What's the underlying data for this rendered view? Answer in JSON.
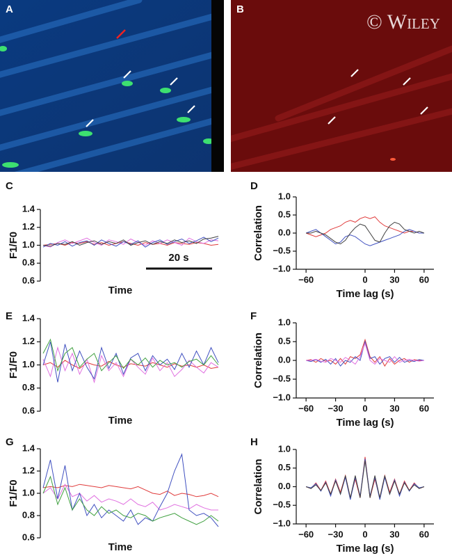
{
  "images": [
    {
      "panel": "A"
    },
    {
      "panel": "B",
      "watermark": "© Wiley"
    }
  ],
  "chart_data": [
    {
      "type": "line",
      "panel": "C",
      "ylabel": "F1/F0",
      "xlabel": "Time",
      "annotation": "20 s",
      "ylim": [
        0.6,
        1.4
      ],
      "yticks": [
        0.6,
        0.8,
        {
          "value": 1.0,
          "label": "1.0"
        },
        1.2,
        1.4
      ],
      "series": [
        {
          "name": "red",
          "color": "#e03a3a",
          "values": [
            1.0,
            1.01,
            1.02,
            1.0,
            1.03,
            1.02,
            1.04,
            1.01,
            1.03,
            1.0,
            1.02,
            1.04,
            1.02,
            1.0,
            1.03,
            1.01,
            1.02,
            1.0,
            1.03,
            1.02,
            1.01,
            1.03,
            1.02,
            1.0,
            1.01
          ]
        },
        {
          "name": "magenta",
          "color": "#e070e0",
          "values": [
            1.0,
            0.98,
            1.03,
            1.06,
            1.02,
            1.05,
            1.08,
            1.03,
            1.0,
            1.06,
            1.04,
            1.01,
            1.07,
            1.03,
            1.0,
            1.05,
            1.02,
            1.06,
            1.03,
            1.0,
            1.08,
            1.04,
            1.02,
            1.06,
            1.05
          ]
        },
        {
          "name": "blue",
          "color": "#4050c0",
          "values": [
            0.98,
            1.02,
            1.0,
            1.04,
            0.99,
            1.03,
            1.05,
            1.0,
            1.06,
            1.02,
            0.99,
            1.04,
            1.01,
            1.05,
            0.98,
            1.03,
            1.06,
            1.01,
            1.04,
            1.07,
            1.02,
            1.05,
            1.09,
            1.04,
            1.08
          ]
        },
        {
          "name": "black",
          "color": "#404040",
          "values": [
            1.0,
            0.99,
            1.02,
            1.01,
            1.04,
            1.0,
            1.03,
            1.05,
            1.01,
            1.04,
            1.02,
            1.06,
            1.0,
            1.03,
            1.05,
            1.01,
            1.04,
            1.02,
            1.06,
            1.03,
            1.05,
            1.02,
            1.07,
            1.08,
            1.1
          ]
        }
      ]
    },
    {
      "type": "line",
      "panel": "D",
      "ylabel": "Correlation",
      "xlabel": "Time lag (s)",
      "xlim": [
        -70,
        70
      ],
      "xticks": [
        {
          "value": -60,
          "label": "−60"
        },
        0,
        30,
        60
      ],
      "ylim": [
        -1,
        1
      ],
      "yticks": [
        {
          "value": -1,
          "label": "−1.0"
        },
        {
          "value": -0.5,
          "label": "−0.5"
        },
        {
          "value": 0,
          "label": "0.0"
        },
        0.5,
        {
          "value": 1,
          "label": "1.0"
        }
      ],
      "x": [
        -60,
        -55,
        -50,
        -45,
        -40,
        -35,
        -30,
        -25,
        -20,
        -15,
        -10,
        -5,
        0,
        5,
        10,
        15,
        20,
        25,
        30,
        35,
        40,
        45,
        50,
        55,
        60
      ],
      "series": [
        {
          "name": "red",
          "color": "#e03a3a",
          "values": [
            0,
            -0.05,
            -0.1,
            -0.05,
            0.0,
            0.1,
            0.15,
            0.2,
            0.3,
            0.35,
            0.3,
            0.4,
            0.45,
            0.4,
            0.45,
            0.3,
            0.2,
            0.15,
            0.1,
            0.05,
            0.0,
            0.05,
            0.05,
            0.0,
            0
          ]
        },
        {
          "name": "blue",
          "color": "#4050c0",
          "values": [
            0,
            0.05,
            0.1,
            0.0,
            -0.1,
            -0.2,
            -0.3,
            -0.25,
            -0.1,
            -0.05,
            -0.1,
            -0.2,
            -0.3,
            -0.35,
            -0.3,
            -0.25,
            -0.2,
            -0.15,
            -0.1,
            -0.05,
            0.05,
            0.1,
            0.05,
            0.0,
            0
          ]
        },
        {
          "name": "black",
          "color": "#404040",
          "values": [
            0,
            0.0,
            0.05,
            0.0,
            -0.05,
            -0.15,
            -0.25,
            -0.3,
            -0.2,
            0.0,
            0.15,
            0.25,
            0.2,
            0.0,
            -0.2,
            -0.25,
            0.0,
            0.2,
            0.3,
            0.25,
            0.1,
            0.05,
            0.0,
            0.05,
            0
          ]
        }
      ]
    },
    {
      "type": "line",
      "panel": "E",
      "ylabel": "F1/F0",
      "xlabel": "Time",
      "ylim": [
        0.6,
        1.4
      ],
      "yticks": [
        0.6,
        0.8,
        {
          "value": 1.0,
          "label": "1.0"
        },
        1.2,
        1.4
      ],
      "series": [
        {
          "name": "red",
          "color": "#e03a3a",
          "values": [
            1.0,
            1.02,
            0.98,
            1.04,
            1.0,
            0.97,
            1.02,
            1.0,
            0.99,
            1.03,
            1.0,
            0.98,
            1.01,
            1.0,
            0.99,
            1.02,
            1.0,
            0.98,
            1.01,
            0.99,
            1.0,
            0.98,
            1.0,
            0.97,
            0.98
          ]
        },
        {
          "name": "magenta",
          "color": "#e070e0",
          "values": [
            1.05,
            0.9,
            1.15,
            0.95,
            1.1,
            0.92,
            1.05,
            0.85,
            1.08,
            0.95,
            1.02,
            0.9,
            1.05,
            0.98,
            0.92,
            1.06,
            0.95,
            1.02,
            0.9,
            0.96,
            1.04,
            0.98,
            0.93,
            1.02,
            0.98
          ]
        },
        {
          "name": "blue",
          "color": "#4050c0",
          "values": [
            1.0,
            1.2,
            0.85,
            1.18,
            0.95,
            1.12,
            0.98,
            0.88,
            1.15,
            0.97,
            1.1,
            0.92,
            1.06,
            1.1,
            0.95,
            1.08,
            1.0,
            1.05,
            0.96,
            1.1,
            0.98,
            1.12,
            1.0,
            1.15,
            1.02
          ]
        },
        {
          "name": "green",
          "color": "#40a040",
          "values": [
            1.1,
            1.22,
            0.95,
            1.1,
            1.15,
            0.98,
            1.05,
            1.1,
            0.95,
            1.02,
            1.08,
            0.97,
            1.05,
            1.0,
            1.06,
            0.98,
            1.04,
            1.0,
            1.02,
            0.98,
            1.03,
            1.05,
            1.0,
            1.08,
            1.0
          ]
        }
      ]
    },
    {
      "type": "line",
      "panel": "F",
      "ylabel": "Correlation",
      "xlabel": "Time lag (s)",
      "xlim": [
        -70,
        70
      ],
      "xticks": [
        {
          "value": -60,
          "label": "−60"
        },
        {
          "value": -30,
          "label": "−30"
        },
        0,
        30,
        60
      ],
      "ylim": [
        -1,
        1
      ],
      "yticks": [
        {
          "value": -1,
          "label": "−1.0"
        },
        {
          "value": -0.5,
          "label": "−0.5"
        },
        {
          "value": 0,
          "label": "0.0"
        },
        0.5,
        {
          "value": 1,
          "label": "1.0"
        }
      ],
      "x": [
        -60,
        -55,
        -50,
        -45,
        -40,
        -35,
        -30,
        -25,
        -20,
        -15,
        -10,
        -5,
        0,
        5,
        10,
        15,
        20,
        25,
        30,
        35,
        40,
        45,
        50,
        55,
        60
      ],
      "series": [
        {
          "name": "red",
          "color": "#e03a3a",
          "values": [
            0,
            0.02,
            -0.05,
            0.05,
            -0.02,
            0.0,
            -0.1,
            0.05,
            -0.1,
            0.1,
            0.05,
            0.15,
            0.55,
            0.1,
            -0.05,
            0.1,
            -0.15,
            0.05,
            -0.1,
            0.0,
            0.05,
            -0.05,
            0.02,
            0.0,
            0
          ]
        },
        {
          "name": "blue",
          "color": "#4050c0",
          "values": [
            0,
            -0.03,
            0.02,
            -0.05,
            0.03,
            -0.1,
            0.05,
            -0.15,
            0.0,
            -0.05,
            0.1,
            0.0,
            0.5,
            0.05,
            0.1,
            -0.1,
            0.05,
            0.1,
            -0.05,
            0.08,
            -0.05,
            0.0,
            -0.03,
            0.02,
            0
          ]
        },
        {
          "name": "magenta",
          "color": "#e070e0",
          "values": [
            0,
            0.0,
            0.03,
            -0.02,
            -0.05,
            0.05,
            0.0,
            -0.05,
            0.08,
            0.0,
            -0.1,
            0.1,
            0.45,
            0.0,
            -0.1,
            0.05,
            0.0,
            -0.05,
            0.1,
            -0.05,
            0.0,
            0.03,
            0.0,
            -0.02,
            0
          ]
        }
      ]
    },
    {
      "type": "line",
      "panel": "G",
      "ylabel": "F1/F0",
      "xlabel": "Time",
      "ylim": [
        0.6,
        1.4
      ],
      "yticks": [
        0.6,
        0.8,
        {
          "value": 1.0,
          "label": "1.0"
        },
        1.2,
        1.4
      ],
      "series": [
        {
          "name": "red",
          "color": "#e03a3a",
          "values": [
            1.05,
            1.06,
            1.05,
            1.07,
            1.06,
            1.08,
            1.07,
            1.06,
            1.05,
            1.07,
            1.06,
            1.05,
            1.04,
            1.06,
            1.03,
            1.0,
            0.99,
            1.02,
            0.98,
            1.0,
            0.99,
            0.97,
            0.98,
            1.0,
            0.97
          ]
        },
        {
          "name": "magenta",
          "color": "#e070e0",
          "values": [
            1.0,
            1.05,
            0.95,
            1.08,
            0.97,
            1.0,
            0.93,
            0.98,
            0.92,
            0.95,
            0.93,
            0.9,
            0.95,
            0.9,
            0.88,
            0.92,
            0.85,
            0.87,
            0.9,
            0.88,
            0.86,
            0.9,
            0.87,
            0.85,
            0.85
          ]
        },
        {
          "name": "blue",
          "color": "#4050c0",
          "values": [
            1.05,
            1.3,
            0.95,
            1.25,
            0.85,
            1.0,
            0.8,
            0.9,
            0.78,
            0.85,
            0.8,
            0.75,
            0.85,
            0.72,
            0.78,
            0.75,
            0.88,
            1.0,
            1.2,
            1.35,
            0.85,
            0.8,
            0.82,
            0.78,
            0.7
          ]
        },
        {
          "name": "green",
          "color": "#40a040",
          "values": [
            1.0,
            1.15,
            0.9,
            1.05,
            0.85,
            0.95,
            0.85,
            0.8,
            0.88,
            0.82,
            0.85,
            0.8,
            0.78,
            0.82,
            0.8,
            0.75,
            0.78,
            0.8,
            0.82,
            0.78,
            0.75,
            0.72,
            0.75,
            0.8,
            0.75
          ]
        }
      ]
    },
    {
      "type": "line",
      "panel": "H",
      "ylabel": "Correlation",
      "xlabel": "Time lag (s)",
      "xlim": [
        -70,
        70
      ],
      "xticks": [
        {
          "value": -60,
          "label": "−60"
        },
        {
          "value": -30,
          "label": "−30"
        },
        0,
        30,
        60
      ],
      "ylim": [
        -1,
        1
      ],
      "yticks": [
        {
          "value": -1,
          "label": "−1.0"
        },
        {
          "value": -0.5,
          "label": "−0.5"
        },
        {
          "value": 0,
          "label": "0.0"
        },
        0.5,
        {
          "value": 1,
          "label": "1.0"
        }
      ],
      "x": [
        -60,
        -55,
        -50,
        -45,
        -40,
        -35,
        -30,
        -25,
        -20,
        -15,
        -10,
        -5,
        0,
        5,
        10,
        15,
        20,
        25,
        30,
        35,
        40,
        45,
        50,
        55,
        60
      ],
      "series": [
        {
          "name": "red",
          "color": "#e03a3a",
          "values": [
            0,
            -0.05,
            0.1,
            -0.1,
            0.15,
            -0.2,
            0.2,
            -0.15,
            0.3,
            -0.3,
            0.2,
            -0.3,
            0.8,
            -0.3,
            0.2,
            -0.3,
            0.3,
            -0.15,
            0.2,
            -0.2,
            0.15,
            -0.1,
            0.1,
            -0.05,
            0
          ]
        },
        {
          "name": "blue",
          "color": "#4050c0",
          "values": [
            0,
            -0.03,
            0.08,
            -0.12,
            0.12,
            -0.25,
            0.18,
            -0.2,
            0.25,
            -0.35,
            0.25,
            -0.25,
            0.75,
            -0.25,
            0.25,
            -0.35,
            0.25,
            -0.2,
            0.18,
            -0.25,
            0.12,
            -0.12,
            0.08,
            -0.03,
            0
          ]
        },
        {
          "name": "black",
          "color": "#404040",
          "values": [
            0,
            -0.05,
            0.05,
            -0.1,
            0.1,
            -0.2,
            0.15,
            -0.2,
            0.3,
            -0.3,
            0.3,
            -0.3,
            0.7,
            -0.3,
            0.3,
            -0.3,
            0.3,
            -0.2,
            0.15,
            -0.2,
            0.1,
            -0.1,
            0.05,
            -0.05,
            0
          ]
        }
      ]
    }
  ]
}
